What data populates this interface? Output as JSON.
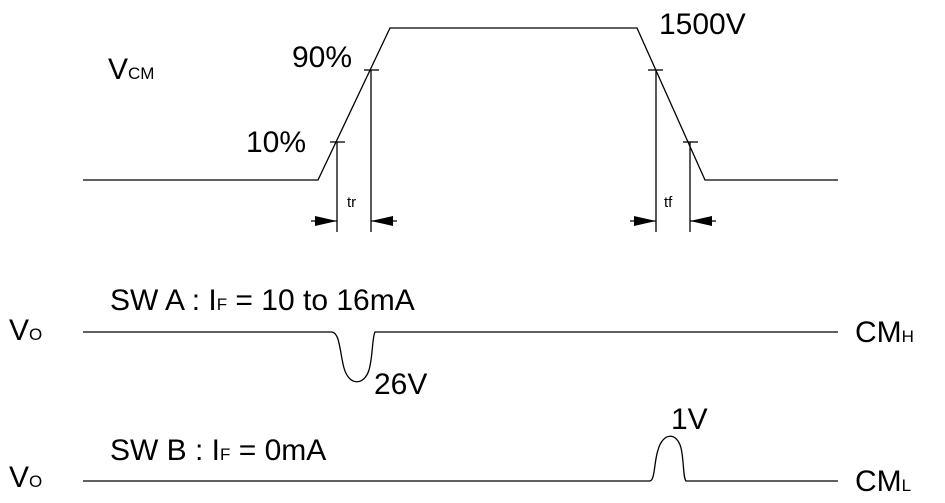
{
  "vcm": {
    "main": "V",
    "sub": "CM"
  },
  "pct10": "10%",
  "pct90": "90%",
  "peak": "1500V",
  "tr": "tr",
  "tf": "tf",
  "swa": {
    "prefix": "SW A : I",
    "sub": "F",
    "rest": " = 10 to 16mA"
  },
  "swb": {
    "prefix": "SW B : I",
    "sub": "F",
    "rest": " = 0mA"
  },
  "vo_a": {
    "main": "V",
    "sub": "O"
  },
  "vo_b": {
    "main": "V",
    "sub": "O"
  },
  "cmh": {
    "main": "CM",
    "sub": "H"
  },
  "cml": {
    "main": "CM",
    "sub": "L"
  },
  "dip": "26V",
  "bump": "1V"
}
